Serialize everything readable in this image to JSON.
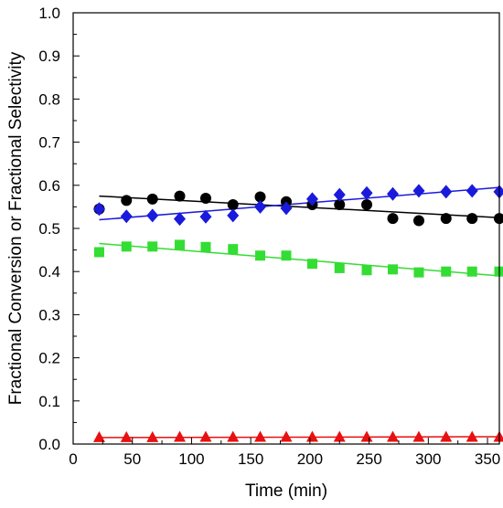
{
  "chart_data": {
    "type": "scatter",
    "xlabel": "Time (min)",
    "ylabel": "Fractional Conversion or Fractional Selectivity",
    "xlim": [
      0,
      360
    ],
    "ylim": [
      0.0,
      1.0
    ],
    "x_ticks": [
      0,
      50,
      100,
      150,
      200,
      250,
      300,
      350
    ],
    "y_ticks": [
      0.0,
      0.1,
      0.2,
      0.3,
      0.4,
      0.5,
      0.6,
      0.7,
      0.8,
      0.9,
      1.0
    ],
    "x_tick_labels": [
      "0",
      "50",
      "100",
      "150",
      "200",
      "250",
      "300",
      "350"
    ],
    "y_tick_labels": [
      "0.0",
      "0.1",
      "0.2",
      "0.3",
      "0.4",
      "0.5",
      "0.6",
      "0.7",
      "0.8",
      "0.9",
      "1.0"
    ],
    "grid": false,
    "series": [
      {
        "marker": "circle",
        "color": "#000000",
        "x": [
          22,
          45,
          67,
          90,
          112,
          135,
          158,
          180,
          202,
          225,
          248,
          270,
          292,
          315,
          337,
          360
        ],
        "y": [
          0.545,
          0.565,
          0.568,
          0.575,
          0.57,
          0.555,
          0.573,
          0.562,
          0.555,
          0.555,
          0.555,
          0.523,
          0.518,
          0.523,
          0.523,
          0.523
        ],
        "fit": [
          [
            22,
            0.575
          ],
          [
            360,
            0.525
          ]
        ]
      },
      {
        "marker": "diamond",
        "color": "#1a1adc",
        "x": [
          22,
          45,
          67,
          90,
          112,
          135,
          158,
          180,
          202,
          225,
          248,
          270,
          292,
          315,
          337,
          360
        ],
        "y": [
          0.545,
          0.528,
          0.53,
          0.522,
          0.527,
          0.53,
          0.55,
          0.547,
          0.568,
          0.578,
          0.582,
          0.58,
          0.587,
          0.585,
          0.587,
          0.585
        ],
        "fit": [
          [
            22,
            0.52
          ],
          [
            360,
            0.595
          ]
        ]
      },
      {
        "marker": "square",
        "color": "#33dd33",
        "x": [
          22,
          45,
          67,
          90,
          112,
          135,
          158,
          180,
          202,
          225,
          248,
          270,
          292,
          315,
          337,
          360
        ],
        "y": [
          0.445,
          0.458,
          0.458,
          0.462,
          0.457,
          0.452,
          0.437,
          0.437,
          0.418,
          0.408,
          0.403,
          0.405,
          0.398,
          0.4,
          0.4,
          0.4
        ],
        "fit": [
          [
            22,
            0.465
          ],
          [
            360,
            0.39
          ]
        ]
      },
      {
        "marker": "triangle",
        "color": "#e81010",
        "x": [
          22,
          45,
          67,
          90,
          112,
          135,
          158,
          180,
          202,
          225,
          248,
          270,
          292,
          315,
          337,
          360
        ],
        "y": [
          0.015,
          0.015,
          0.015,
          0.016,
          0.016,
          0.016,
          0.016,
          0.016,
          0.016,
          0.016,
          0.016,
          0.016,
          0.016,
          0.016,
          0.016,
          0.016
        ],
        "fit": [
          [
            22,
            0.015
          ],
          [
            360,
            0.017
          ]
        ]
      }
    ]
  }
}
